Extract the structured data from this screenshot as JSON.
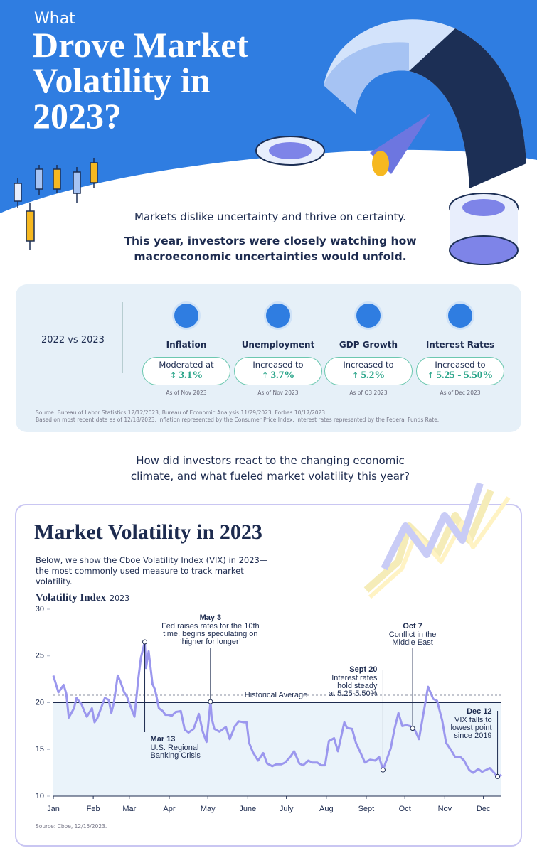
{
  "header": {
    "kicker": "What",
    "title": "Drove Market Volatility in 2023?"
  },
  "intro": {
    "line1": "Markets dislike uncertainty and thrive on certainty.",
    "line2": "This year, investors were closely watching how macroeconomic uncertainties would unfold."
  },
  "summary": {
    "label": "2022 vs 2023",
    "items": [
      {
        "name": "Inflation",
        "status": "Moderated at",
        "arrow": "↕",
        "value": "3.1%",
        "asof": "As of Nov 2023"
      },
      {
        "name": "Unemployment",
        "status": "Increased to",
        "arrow": "↑",
        "value": "3.7%",
        "asof": "As of Nov 2023"
      },
      {
        "name": "GDP Growth",
        "status": "Increased to",
        "arrow": "↑",
        "value": "5.2%",
        "asof": "As of Q3 2023"
      },
      {
        "name": "Interest Rates",
        "status": "Increased to",
        "arrow": "↑",
        "value": "5.25 - 5.50%",
        "asof": "As of Dec 2023"
      }
    ],
    "source": "Source: Bureau of Labor Statistics 12/12/2023, Bureau of Economic Analysis 11/29/2023, Forbes 10/17/2023.",
    "note": "Based on most recent data as of 12/18/2023. Inflation represented by the Consumer Price Index. Interest rates represented by the Federal Funds Rate."
  },
  "question": "How did investors react to the changing economic climate, and what fueled market volatility this year?",
  "chart_data": {
    "type": "line",
    "title": "Market Volatility in 2023",
    "subtitle": "Below, we show the Cboe Volatility Index (VIX) in 2023—the most commonly used measure to track market volatility.",
    "y_label": "Volatility Index",
    "y_label_year": "2023",
    "color": "#9b97ee",
    "x": [
      1,
      3,
      5,
      9,
      11,
      13,
      17,
      19,
      23,
      25,
      27,
      31,
      33,
      35,
      38,
      41,
      44,
      46,
      48,
      51,
      53,
      56,
      58,
      61,
      64,
      67,
      69,
      72,
      73,
      75,
      78,
      80,
      83,
      86,
      88,
      90,
      93,
      96,
      100,
      103,
      106,
      110,
      114,
      117,
      120,
      123,
      124,
      126,
      130,
      135,
      138,
      142,
      145,
      149,
      151,
      153,
      156,
      160,
      164,
      167,
      171,
      174,
      178,
      181,
      185,
      188,
      192,
      195,
      199,
      202,
      206,
      209,
      212,
      215,
      219,
      222,
      227,
      229,
      233,
      236,
      240,
      243,
      247,
      251,
      254,
      257,
      263,
      266,
      269,
      272,
      275,
      278,
      282,
      285,
      289,
      292,
      296,
      299,
      303,
      306,
      310,
      313,
      317,
      320,
      324,
      327,
      331,
      334,
      337,
      340,
      344,
      346,
      348,
      349
    ],
    "values": [
      22.9,
      22.0,
      21.1,
      21.9,
      21.0,
      18.4,
      19.4,
      20.5,
      19.8,
      19.1,
      18.5,
      19.4,
      17.9,
      18.3,
      19.4,
      20.5,
      20.3,
      18.9,
      20.0,
      22.9,
      22.3,
      21.1,
      20.7,
      19.6,
      18.5,
      22.6,
      24.8,
      26.5,
      23.7,
      25.5,
      22.0,
      21.4,
      19.4,
      19.1,
      18.7,
      18.7,
      18.6,
      19.0,
      19.1,
      17.1,
      16.8,
      17.2,
      18.8,
      16.9,
      15.8,
      20.1,
      18.3,
      17.2,
      16.9,
      17.4,
      16.1,
      17.5,
      18.0,
      17.9,
      17.9,
      15.7,
      14.7,
      13.8,
      14.6,
      13.5,
      13.2,
      13.4,
      13.4,
      13.6,
      14.2,
      14.8,
      13.5,
      13.3,
      13.8,
      13.6,
      13.6,
      13.3,
      13.3,
      15.9,
      16.2,
      14.8,
      17.9,
      17.3,
      17.2,
      15.7,
      14.5,
      13.6,
      13.9,
      13.8,
      14.2,
      12.8,
      15.1,
      17.2,
      18.9,
      17.5,
      17.6,
      17.5,
      17.0,
      16.1,
      19.3,
      21.7,
      20.4,
      20.2,
      18.1,
      15.7,
      14.9,
      14.2,
      14.2,
      13.8,
      12.8,
      12.5,
      12.9,
      12.6,
      12.8,
      13.0,
      12.4,
      12.1,
      12.2,
      12.3
    ],
    "xlim": [
      1,
      349
    ],
    "xticks": [
      {
        "value": 1,
        "label": "Jan"
      },
      {
        "value": 32,
        "label": "Feb"
      },
      {
        "value": 60,
        "label": "Mar"
      },
      {
        "value": 91,
        "label": "Apr"
      },
      {
        "value": 121,
        "label": "May"
      },
      {
        "value": 152,
        "label": "June"
      },
      {
        "value": 182,
        "label": "July"
      },
      {
        "value": 213,
        "label": "Aug"
      },
      {
        "value": 244,
        "label": "Sept"
      },
      {
        "value": 274,
        "label": "Oct"
      },
      {
        "value": 305,
        "label": "Nov"
      },
      {
        "value": 335,
        "label": "Dec"
      }
    ],
    "ylim": [
      10,
      30
    ],
    "yticks": [
      10,
      15,
      20,
      25,
      30
    ],
    "grid": false,
    "shade_below": 20,
    "reference": {
      "label": "Historical Average",
      "value": 20.8
    },
    "annotations": [
      {
        "x": 72,
        "title": "Mar 13",
        "lines": [
          "U.S. Regional",
          "Banking Crisis"
        ]
      },
      {
        "x": 123,
        "title": "May 3",
        "lines": [
          "Fed raises rates for the 10th",
          "time, begins speculating on",
          "‘higher for longer’"
        ]
      },
      {
        "x": 257,
        "title": "Sept 20",
        "lines": [
          "Interest rates",
          "hold steady",
          "at 5.25-5.50%"
        ]
      },
      {
        "x": 280,
        "title": "Oct 7",
        "lines": [
          "Conflict in the",
          "Middle East"
        ]
      },
      {
        "x": 346,
        "title": "Dec 12",
        "lines": [
          "VIX falls to",
          "lowest point",
          "since 2019"
        ]
      }
    ],
    "source": "Source: Cboe, 12/15/2023."
  }
}
